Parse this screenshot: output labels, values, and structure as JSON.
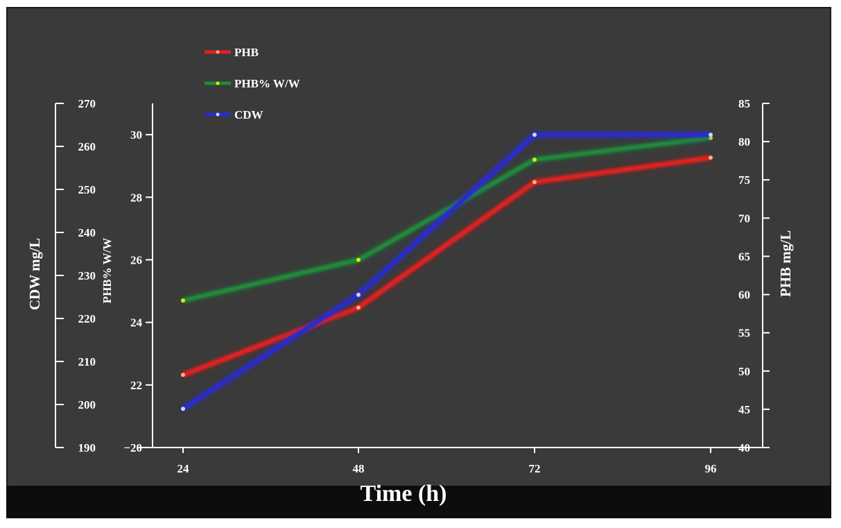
{
  "chart_data": {
    "type": "line",
    "x": [
      24,
      48,
      72,
      96
    ],
    "xlabel": "Time (h)",
    "axes": {
      "cdw": {
        "label": "CDW   mg/L",
        "min": 190,
        "max": 270,
        "ticks": [
          "190",
          "200",
          "210",
          "220",
          "230",
          "240",
          "250",
          "260",
          "270"
        ],
        "side": "left-outer"
      },
      "phb_pct": {
        "label": "PHB% W/W",
        "min": 20,
        "max": 31,
        "ticks": [
          "−20",
          "22",
          "24",
          "26",
          "28",
          "30"
        ],
        "side": "left-inner"
      },
      "phb": {
        "label": "PHB   mg/L",
        "min": 40,
        "max": 85,
        "ticks": [
          "40",
          "45",
          "50",
          "55",
          "60",
          "65",
          "70",
          "75",
          "80",
          "85"
        ],
        "side": "right"
      }
    },
    "series": [
      {
        "name": "PHB",
        "axis": "phb",
        "color": "#e02020",
        "marker": "#ffb080",
        "values": [
          49.5,
          58.3,
          74.7,
          77.9
        ]
      },
      {
        "name": "PHB% W/W",
        "axis": "phb_pct",
        "color": "#1f8a3a",
        "marker": "#e6e600",
        "values": [
          24.7,
          26.0,
          29.2,
          29.9
        ]
      },
      {
        "name": "CDW",
        "axis": "cdw",
        "color": "#2a2ad0",
        "marker": "#c8d8ff",
        "values": [
          199.0,
          225.5,
          262.7,
          262.7
        ]
      }
    ],
    "legend_position": "top-left",
    "grid": false
  }
}
